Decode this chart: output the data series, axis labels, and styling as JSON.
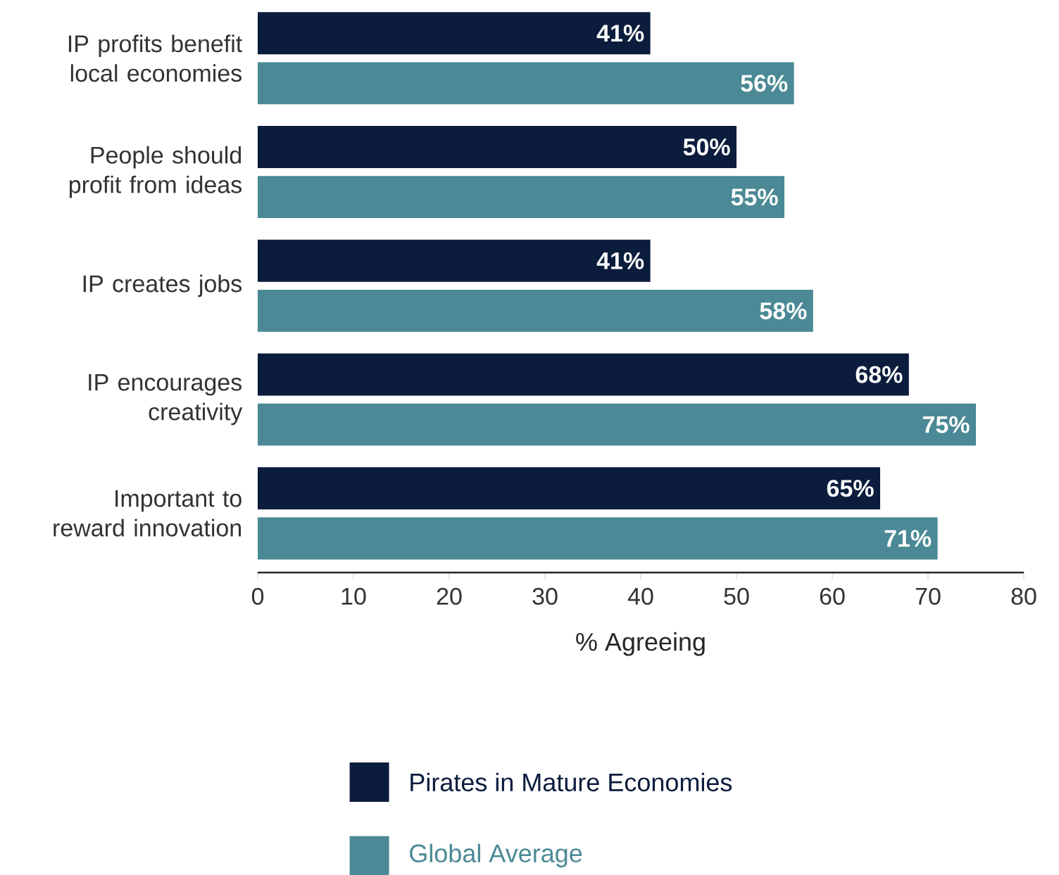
{
  "chart_data": {
    "type": "bar",
    "orientation": "horizontal",
    "xlabel": "% Agreeing",
    "categories": [
      "IP profits benefit local economies",
      "People should profit from ideas",
      "IP creates jobs",
      "IP encourages creativity",
      "Important to reward innovation"
    ],
    "series": [
      {
        "name": "Pirates in Mature Economies",
        "color": "#0b1c3c",
        "values": [
          41,
          50,
          41,
          68,
          65
        ],
        "value_labels": [
          "41%",
          "50%",
          "41%",
          "68%",
          "65%"
        ]
      },
      {
        "name": "Global Average",
        "color": "#4a8995",
        "values": [
          56,
          55,
          58,
          75,
          71
        ],
        "value_labels": [
          "56%",
          "55%",
          "58%",
          "75%",
          "71%"
        ]
      }
    ],
    "xlim": [
      0,
      80
    ],
    "xticks": [
      0,
      10,
      20,
      30,
      40,
      50,
      60,
      70,
      80
    ],
    "grid": false,
    "legend": "bottom"
  }
}
